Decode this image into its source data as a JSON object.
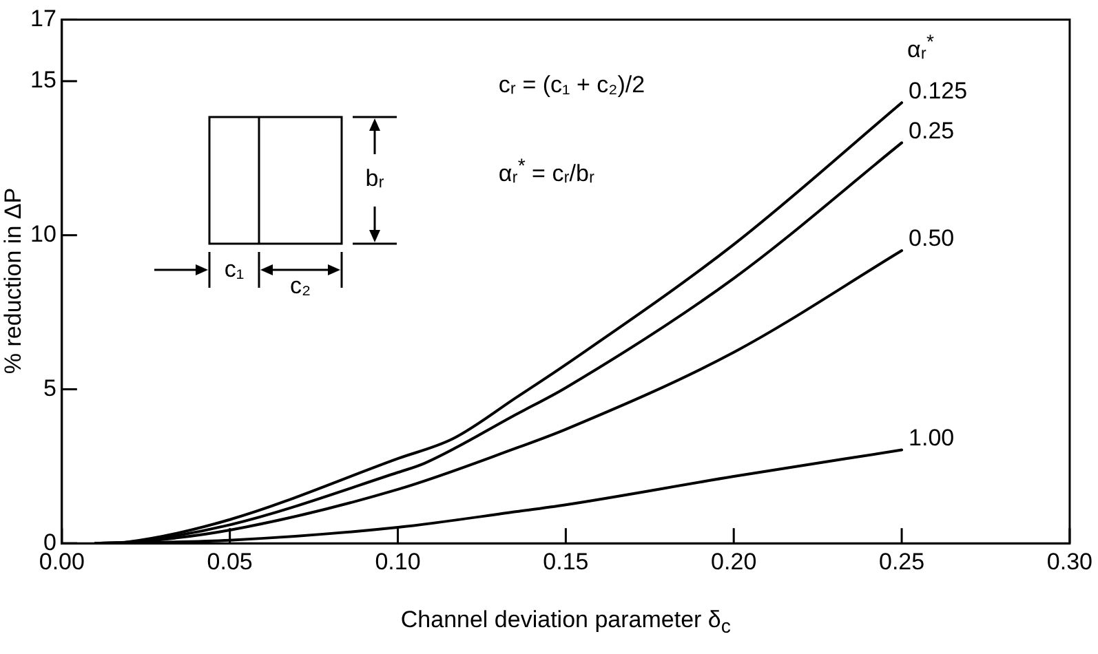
{
  "chart_data": {
    "type": "line",
    "xlabel": "Channel deviation parameter δ$_{c}$",
    "ylabel": "% reduction in ΔP",
    "legend_title": "αᵣ$^{*}$",
    "xlim": [
      0,
      0.3
    ],
    "xticks": [
      {
        "value": 0,
        "label": "0.00"
      },
      {
        "value": 0.05,
        "label": "0.05"
      },
      {
        "value": 0.1,
        "label": "0.10"
      },
      {
        "value": 0.15,
        "label": "0.15"
      },
      {
        "value": 0.2,
        "label": "0.20"
      },
      {
        "value": 0.25,
        "label": "0.25"
      },
      {
        "value": 0.3,
        "label": "0.30"
      }
    ],
    "ylim": [
      0,
      17
    ],
    "yticks": [
      0,
      5,
      10,
      15,
      17
    ],
    "marker": "none",
    "line_style": "solid",
    "legend": false,
    "series": [
      {
        "name": "0.125",
        "color": "#000000",
        "x": [
          0.01,
          0.02,
          0.05,
          0.1,
          0.1165,
          0.1355,
          0.15,
          0.2,
          0.25
        ],
        "values": [
          0,
          0.05,
          0.77,
          2.75,
          3.4,
          4.75,
          5.8,
          9.7,
          14.3
        ]
      },
      {
        "name": "0.25",
        "color": "#000000",
        "x": [
          0.01,
          0.02,
          0.05,
          0.1,
          0.108,
          0.1355,
          0.15,
          0.2,
          0.25
        ],
        "values": [
          0,
          0.04,
          0.6,
          2.3,
          2.6,
          4.2,
          5.05,
          8.6,
          13.0
        ]
      },
      {
        "name": "0.50",
        "color": "#000000",
        "x": [
          0.01,
          0.02,
          0.05,
          0.1,
          0.1355,
          0.15,
          0.2,
          0.25
        ],
        "values": [
          0,
          0.03,
          0.43,
          1.75,
          3.1,
          3.7,
          6.2,
          9.5
        ]
      },
      {
        "name": "1.00",
        "color": "#000000",
        "x": [
          0.01,
          0.05,
          0.1,
          0.1355,
          0.15,
          0.2,
          0.25
        ],
        "values": [
          0,
          0.1,
          0.52,
          1.03,
          1.25,
          2.17,
          3.03
        ]
      }
    ],
    "annotations": [
      "cᵣ = (c₁ + c₂)/2",
      "αᵣ$^{*}$ = cᵣ/bᵣ",
      "c₁",
      "c₂",
      "bᵣ"
    ]
  }
}
